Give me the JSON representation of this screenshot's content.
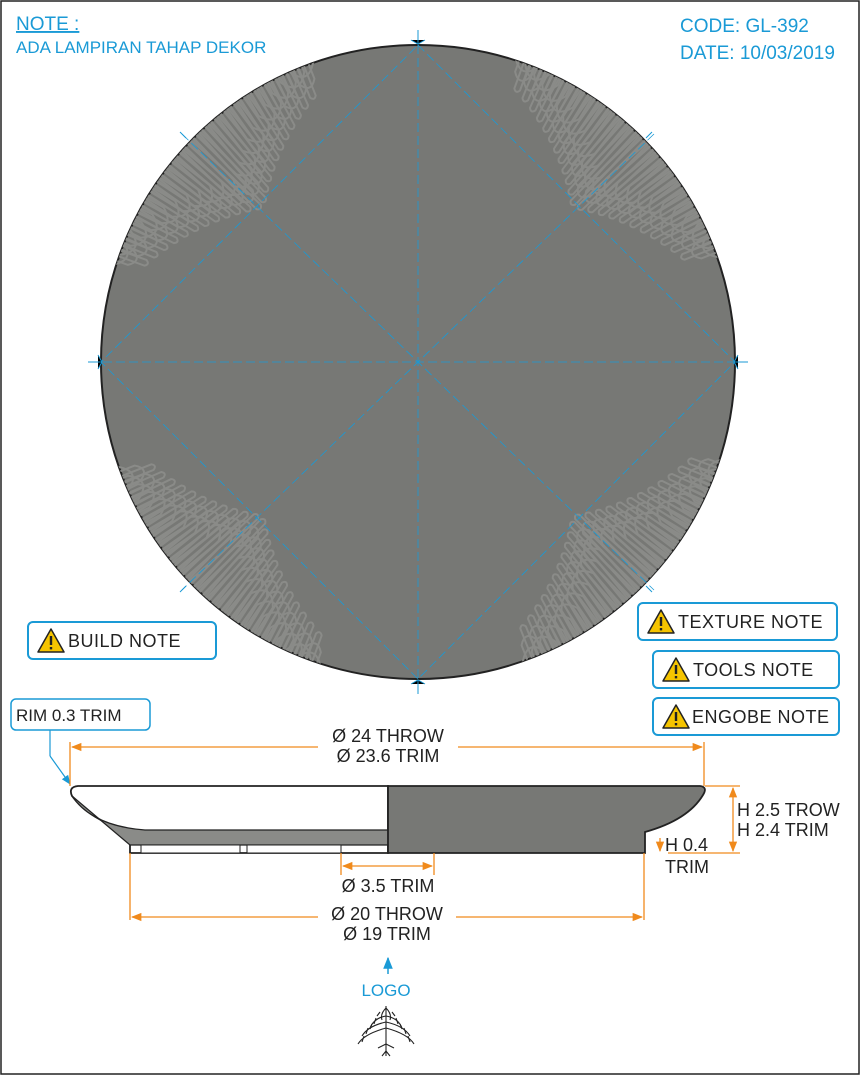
{
  "header": {
    "note_title": "NOTE :",
    "note_text": "ADA LAMPIRAN TAHAP DEKOR",
    "code": "CODE: GL-392",
    "date": "DATE: 10/03/2019"
  },
  "notes": {
    "build": "BUILD NOTE",
    "texture": "TEXTURE NOTE",
    "tools": "TOOLS NOTE",
    "engobe": "ENGOBE NOTE"
  },
  "dimensions": {
    "rim": "RIM 0.3 TRIM",
    "outer_throw": "Ø 24 THROW",
    "outer_trim": "Ø 23.6 TRIM",
    "height_throw": "H 2.5 TROW",
    "height_trim": "H 2.4 TRIM",
    "foot_height_1": "H 0.4",
    "foot_height_2": "TRIM",
    "inner_foot": "Ø 3.5 TRIM",
    "base_throw": "Ø 20 THROW",
    "base_trim": "Ø 19 TRIM"
  },
  "logo": {
    "label": "LOGO"
  },
  "colors": {
    "blue": "#1a9ad6",
    "orange": "#f08a1c",
    "plate": "#777875",
    "outline": "#222222",
    "texture": "#8a8b88",
    "warning": "#f5c400"
  },
  "icons": {
    "warning": "warning-triangle-icon",
    "logo": "tree-logo-icon",
    "arrow": "arrow-up-icon"
  }
}
